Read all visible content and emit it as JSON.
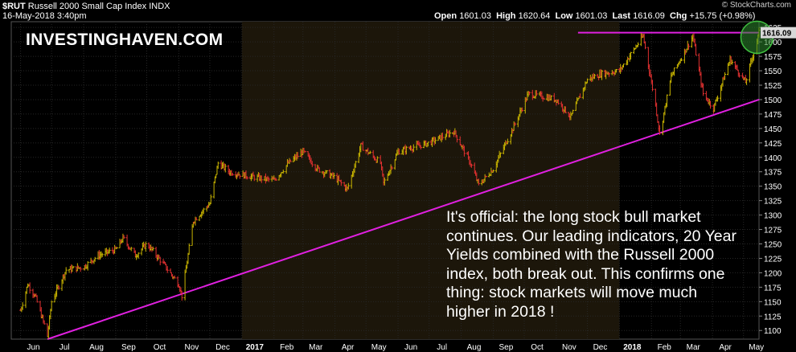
{
  "header": {
    "symbol": "$RUT",
    "name": "Russell 2000 Small Cap Index",
    "exchange": "INDX",
    "datetime": "16-May-2018 3:40pm",
    "open_label": "Open",
    "open": "1601.03",
    "high_label": "High",
    "high": "1620.64",
    "low_label": "Low",
    "low": "1601.03",
    "last_label": "Last",
    "last": "1616.09",
    "chg_label": "Chg",
    "chg": "+15.75 (+0.98%)",
    "source": "© StockCharts.com"
  },
  "watermark": "INVESTINGHAVEN.COM",
  "annotation": "It's official: the long stock bull market continues. Our leading indicators, 20 Year Yields combined with the Russell 2000 index, both break out. This confirms one thing: stock markets will move much higher in 2018 !",
  "chart_data": {
    "type": "line",
    "style": "ohlc-bars",
    "title": "$RUT Russell 2000 Small Cap Index INDX",
    "y_axis_position": "right",
    "ylim": [
      1085,
      1635
    ],
    "y_ticks": [
      1100,
      1125,
      1150,
      1175,
      1200,
      1225,
      1250,
      1275,
      1300,
      1325,
      1350,
      1375,
      1400,
      1425,
      1450,
      1475,
      1500,
      1525,
      1550,
      1575,
      1600,
      1625
    ],
    "x_ticks": [
      "Jun",
      "Jul",
      "Aug",
      "Sep",
      "Oct",
      "Nov",
      "Dec",
      "2017",
      "Feb",
      "Mar",
      "Apr",
      "May",
      "Jun",
      "Jul",
      "Aug",
      "Sep",
      "Oct",
      "Nov",
      "Dec",
      "2018",
      "Feb",
      "Mar",
      "Apr",
      "May"
    ],
    "x_range": [
      "2016-05-23",
      "2018-05-16"
    ],
    "grid": true,
    "last_value_label": "1616.09",
    "colors": {
      "up": "#c8b400",
      "down": "#e03030",
      "trendline": "#e020e0",
      "band_2017": "#1c160a",
      "highlight_circle": "#2e8b2e"
    },
    "series": [
      {
        "values": [
          {
            "x": "2016-06-01",
            "y": 1135
          },
          {
            "x": "2016-06-08",
            "y": 1180
          },
          {
            "x": "2016-06-15",
            "y": 1160
          },
          {
            "x": "2016-06-24",
            "y": 1110
          },
          {
            "x": "2016-06-27",
            "y": 1090
          },
          {
            "x": "2016-07-01",
            "y": 1150
          },
          {
            "x": "2016-07-15",
            "y": 1205
          },
          {
            "x": "2016-08-01",
            "y": 1210
          },
          {
            "x": "2016-08-15",
            "y": 1230
          },
          {
            "x": "2016-09-01",
            "y": 1240
          },
          {
            "x": "2016-09-08",
            "y": 1260
          },
          {
            "x": "2016-09-20",
            "y": 1230
          },
          {
            "x": "2016-10-01",
            "y": 1250
          },
          {
            "x": "2016-10-15",
            "y": 1220
          },
          {
            "x": "2016-11-01",
            "y": 1180
          },
          {
            "x": "2016-11-04",
            "y": 1160
          },
          {
            "x": "2016-11-15",
            "y": 1290
          },
          {
            "x": "2016-12-01",
            "y": 1320
          },
          {
            "x": "2016-12-09",
            "y": 1390
          },
          {
            "x": "2016-12-20",
            "y": 1375
          },
          {
            "x": "2017-01-01",
            "y": 1370
          },
          {
            "x": "2017-01-15",
            "y": 1365
          },
          {
            "x": "2017-02-01",
            "y": 1360
          },
          {
            "x": "2017-02-15",
            "y": 1390
          },
          {
            "x": "2017-03-01",
            "y": 1410
          },
          {
            "x": "2017-03-15",
            "y": 1380
          },
          {
            "x": "2017-04-01",
            "y": 1365
          },
          {
            "x": "2017-04-13",
            "y": 1345
          },
          {
            "x": "2017-04-26",
            "y": 1420
          },
          {
            "x": "2017-05-15",
            "y": 1390
          },
          {
            "x": "2017-05-18",
            "y": 1355
          },
          {
            "x": "2017-06-01",
            "y": 1410
          },
          {
            "x": "2017-06-20",
            "y": 1420
          },
          {
            "x": "2017-07-01",
            "y": 1425
          },
          {
            "x": "2017-07-25",
            "y": 1445
          },
          {
            "x": "2017-08-10",
            "y": 1390
          },
          {
            "x": "2017-08-18",
            "y": 1352
          },
          {
            "x": "2017-09-01",
            "y": 1380
          },
          {
            "x": "2017-09-20",
            "y": 1450
          },
          {
            "x": "2017-10-05",
            "y": 1510
          },
          {
            "x": "2017-10-20",
            "y": 1505
          },
          {
            "x": "2017-11-01",
            "y": 1500
          },
          {
            "x": "2017-11-15",
            "y": 1470
          },
          {
            "x": "2017-12-01",
            "y": 1535
          },
          {
            "x": "2017-12-15",
            "y": 1545
          },
          {
            "x": "2018-01-01",
            "y": 1550
          },
          {
            "x": "2018-01-24",
            "y": 1610
          },
          {
            "x": "2018-02-05",
            "y": 1490
          },
          {
            "x": "2018-02-09",
            "y": 1440
          },
          {
            "x": "2018-02-20",
            "y": 1540
          },
          {
            "x": "2018-03-13",
            "y": 1610
          },
          {
            "x": "2018-03-23",
            "y": 1510
          },
          {
            "x": "2018-04-02",
            "y": 1485
          },
          {
            "x": "2018-04-18",
            "y": 1570
          },
          {
            "x": "2018-05-03",
            "y": 1530
          },
          {
            "x": "2018-05-16",
            "y": 1616
          }
        ]
      }
    ],
    "resistance_line": {
      "y": 1616
    },
    "trendline": [
      {
        "x": "2016-06-27",
        "y": 1085
      },
      {
        "x": "2018-05-16",
        "y": 1500
      }
    ]
  }
}
